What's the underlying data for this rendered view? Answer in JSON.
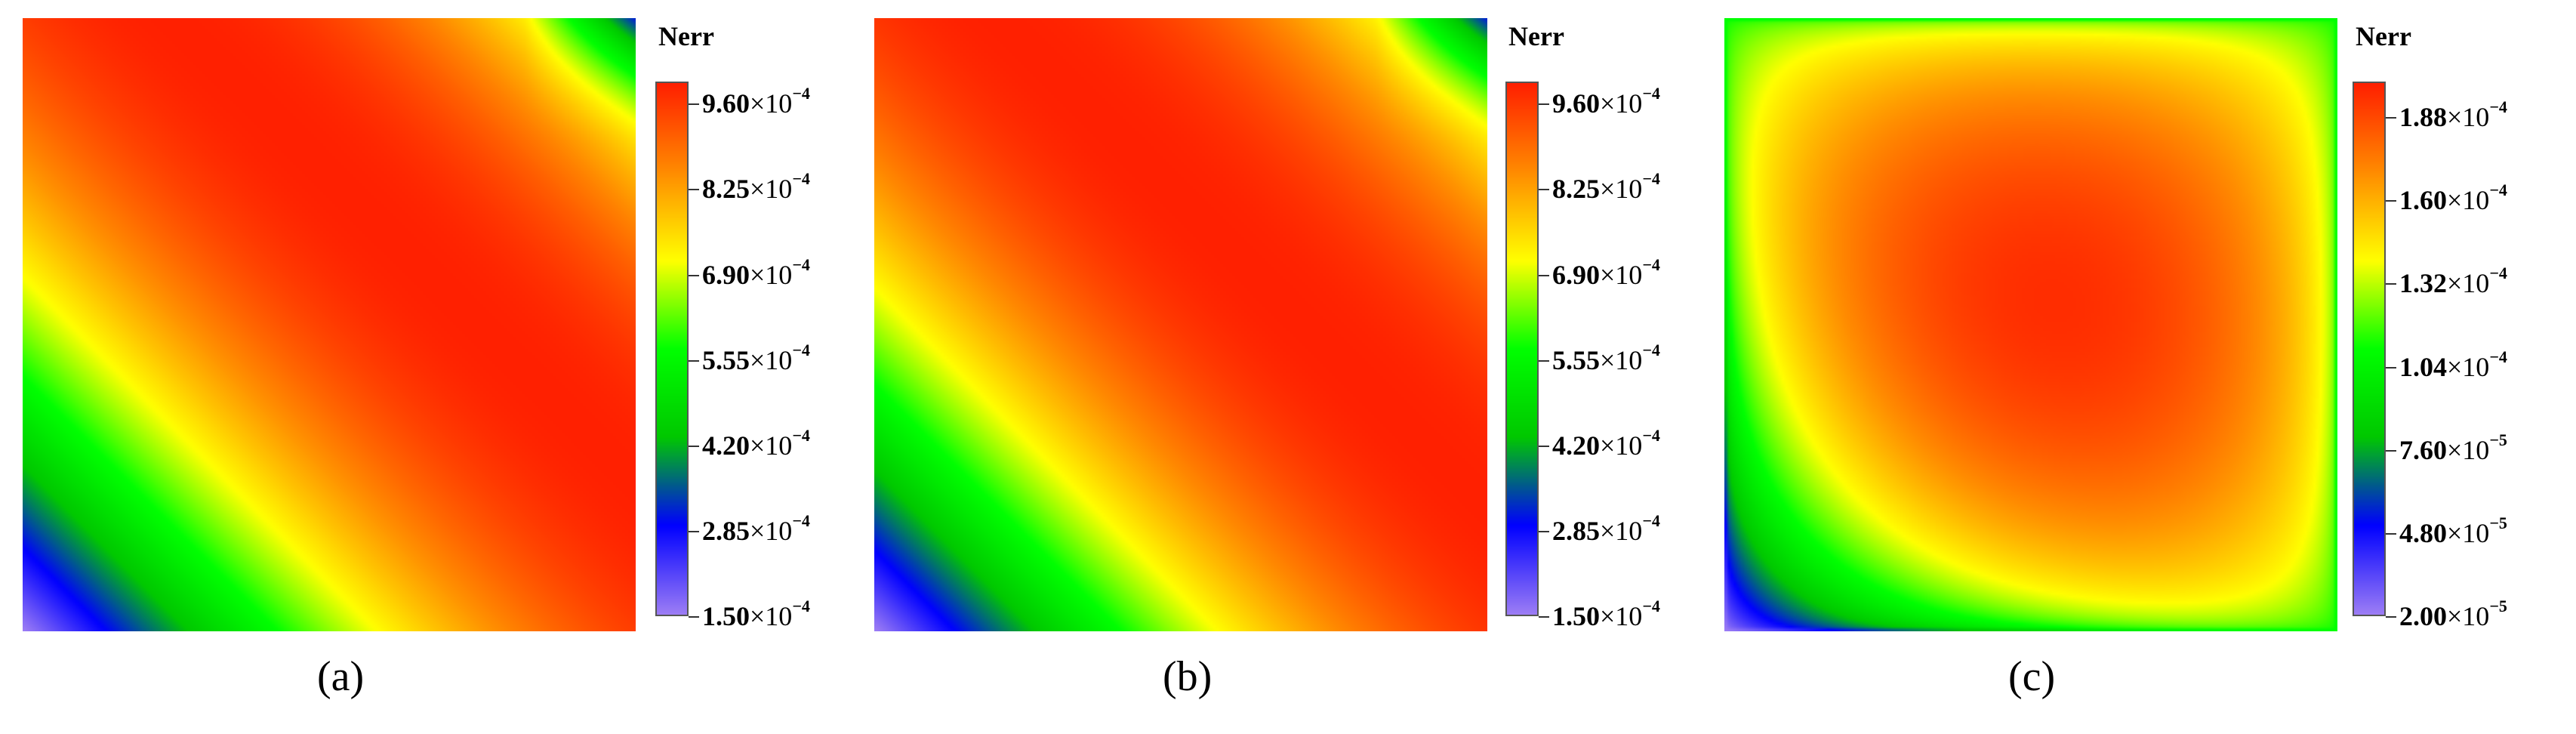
{
  "chart_data": [
    {
      "type": "heatmap",
      "caption": "(a)",
      "colorbar": {
        "title": "Nerr",
        "range": [
          0.00015,
          0.000995
        ],
        "ticks": [
          {
            "mant": "9.60",
            "exp": "−4"
          },
          {
            "mant": "8.25",
            "exp": "−4"
          },
          {
            "mant": "6.90",
            "exp": "−4"
          },
          {
            "mant": "5.55",
            "exp": "−4"
          },
          {
            "mant": "4.20",
            "exp": "−4"
          },
          {
            "mant": "2.85",
            "exp": "−4"
          },
          {
            "mant": "1.50",
            "exp": "−4"
          }
        ],
        "tick_values": [
          0.00096,
          0.000825,
          0.00069,
          0.000555,
          0.00042,
          0.000285,
          0.00015
        ]
      },
      "pattern": "diagonal",
      "peak": [
        0.62,
        0.62
      ]
    },
    {
      "type": "heatmap",
      "caption": "(b)",
      "colorbar": {
        "title": "Nerr",
        "range": [
          0.00015,
          0.000995
        ],
        "ticks": [
          {
            "mant": "9.60",
            "exp": "−4"
          },
          {
            "mant": "8.25",
            "exp": "−4"
          },
          {
            "mant": "6.90",
            "exp": "−4"
          },
          {
            "mant": "5.55",
            "exp": "−4"
          },
          {
            "mant": "4.20",
            "exp": "−4"
          },
          {
            "mant": "2.85",
            "exp": "−4"
          },
          {
            "mant": "1.50",
            "exp": "−4"
          }
        ],
        "tick_values": [
          0.00096,
          0.000825,
          0.00069,
          0.000555,
          0.00042,
          0.000285,
          0.00015
        ]
      },
      "pattern": "diagonal",
      "peak": [
        0.6,
        0.6
      ]
    },
    {
      "type": "heatmap",
      "caption": "(c)",
      "colorbar": {
        "title": "Nerr",
        "range": [
          2e-05,
          0.0002
        ],
        "ticks": [
          {
            "mant": "1.88",
            "exp": "−4"
          },
          {
            "mant": "1.60",
            "exp": "−4"
          },
          {
            "mant": "1.32",
            "exp": "−4"
          },
          {
            "mant": "1.04",
            "exp": "−4"
          },
          {
            "mant": "7.60",
            "exp": "−5"
          },
          {
            "mant": "4.80",
            "exp": "−5"
          },
          {
            "mant": "2.00",
            "exp": "−5"
          }
        ],
        "tick_values": [
          0.000188,
          0.00016,
          0.000132,
          0.000104,
          7.6e-05,
          4.8e-05,
          2e-05
        ]
      },
      "pattern": "bubble",
      "peak": [
        0.5,
        0.5
      ]
    }
  ],
  "colormap": [
    "#9b7cf5",
    "#0000ff",
    "#00c800",
    "#00ff00",
    "#ffff00",
    "#ff8c00",
    "#ff2000"
  ]
}
